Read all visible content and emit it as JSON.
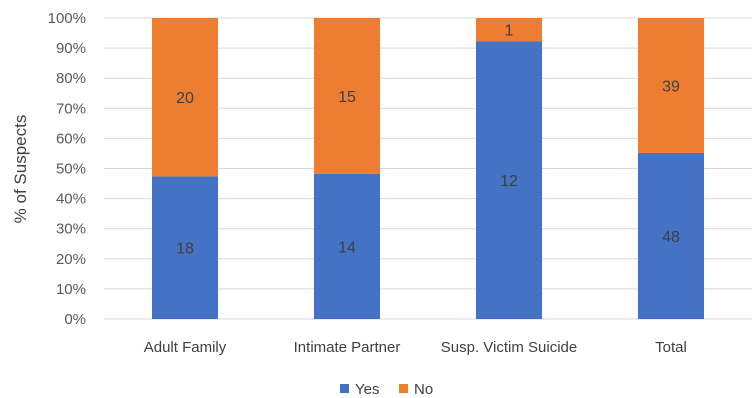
{
  "chart_data": {
    "type": "bar",
    "stacked": true,
    "normalized_percent": true,
    "categories": [
      "Adult Family",
      "Intimate Partner",
      "Susp. Victim Suicide",
      "Total"
    ],
    "series": [
      {
        "name": "Yes",
        "values": [
          18,
          14,
          12,
          48
        ],
        "color": "#4472C4"
      },
      {
        "name": "No",
        "values": [
          20,
          15,
          1,
          39
        ],
        "color": "#ED7D31"
      }
    ],
    "ylabel": "% of Suspects",
    "xlabel": "",
    "ylim": [
      0,
      100
    ],
    "yticks": [
      "0%",
      "10%",
      "20%",
      "30%",
      "40%",
      "50%",
      "60%",
      "70%",
      "80%",
      "90%",
      "100%"
    ],
    "grid": true,
    "legend_position": "bottom"
  }
}
